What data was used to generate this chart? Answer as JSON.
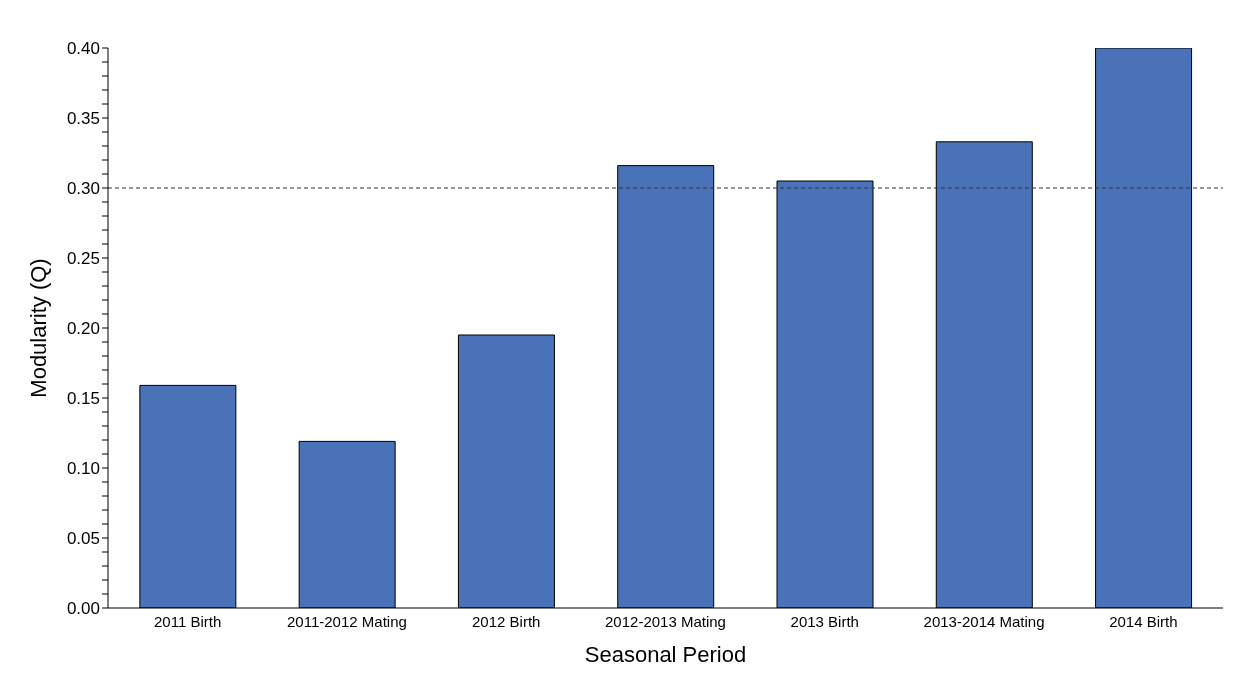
{
  "chart_data": {
    "type": "bar",
    "xlabel": "Seasonal Period",
    "ylabel": "Modularity (Q)",
    "categories": [
      "2011 Birth",
      "2011-2012 Mating",
      "2012 Birth",
      "2012-2013 Mating",
      "2013 Birth",
      "2013-2014 Mating",
      "2014 Birth"
    ],
    "values": [
      0.159,
      0.119,
      0.195,
      0.316,
      0.305,
      0.333,
      0.4
    ],
    "color": "#4a72b8",
    "ylim": [
      0,
      0.4
    ],
    "yticks": [
      {
        "value": 0,
        "label": "0.00"
      },
      {
        "value": 0.01,
        "label": null
      },
      {
        "value": 0.02,
        "label": null
      },
      {
        "value": 0.03,
        "label": null
      },
      {
        "value": 0.04,
        "label": null
      },
      {
        "value": 0.05,
        "label": "0.05"
      },
      {
        "value": 0.06,
        "label": null
      },
      {
        "value": 0.07,
        "label": null
      },
      {
        "value": 0.08,
        "label": null
      },
      {
        "value": 0.09,
        "label": null
      },
      {
        "value": 0.1,
        "label": "0.10"
      },
      {
        "value": 0.11,
        "label": null
      },
      {
        "value": 0.12,
        "label": null
      },
      {
        "value": 0.13,
        "label": null
      },
      {
        "value": 0.14,
        "label": null
      },
      {
        "value": 0.15,
        "label": "0.15"
      },
      {
        "value": 0.16,
        "label": null
      },
      {
        "value": 0.17,
        "label": null
      },
      {
        "value": 0.18,
        "label": null
      },
      {
        "value": 0.19,
        "label": null
      },
      {
        "value": 0.2,
        "label": "0.20"
      },
      {
        "value": 0.21,
        "label": null
      },
      {
        "value": 0.22,
        "label": null
      },
      {
        "value": 0.23,
        "label": null
      },
      {
        "value": 0.24,
        "label": null
      },
      {
        "value": 0.25,
        "label": "0.25"
      },
      {
        "value": 0.26,
        "label": null
      },
      {
        "value": 0.27,
        "label": null
      },
      {
        "value": 0.28,
        "label": null
      },
      {
        "value": 0.29,
        "label": null
      },
      {
        "value": 0.3,
        "label": "0.30"
      },
      {
        "value": 0.31,
        "label": null
      },
      {
        "value": 0.32,
        "label": null
      },
      {
        "value": 0.33,
        "label": null
      },
      {
        "value": 0.34,
        "label": null
      },
      {
        "value": 0.35,
        "label": "0.35"
      },
      {
        "value": 0.36,
        "label": null
      },
      {
        "value": 0.37,
        "label": null
      },
      {
        "value": 0.38,
        "label": null
      },
      {
        "value": 0.39,
        "label": null
      },
      {
        "value": 0.4,
        "label": "0.40"
      }
    ],
    "ref_lines": [
      {
        "axis": "y",
        "value": 0.3,
        "label": null,
        "color": "#333333",
        "line_style": "dashed"
      }
    ],
    "grid": false,
    "legend": false
  }
}
